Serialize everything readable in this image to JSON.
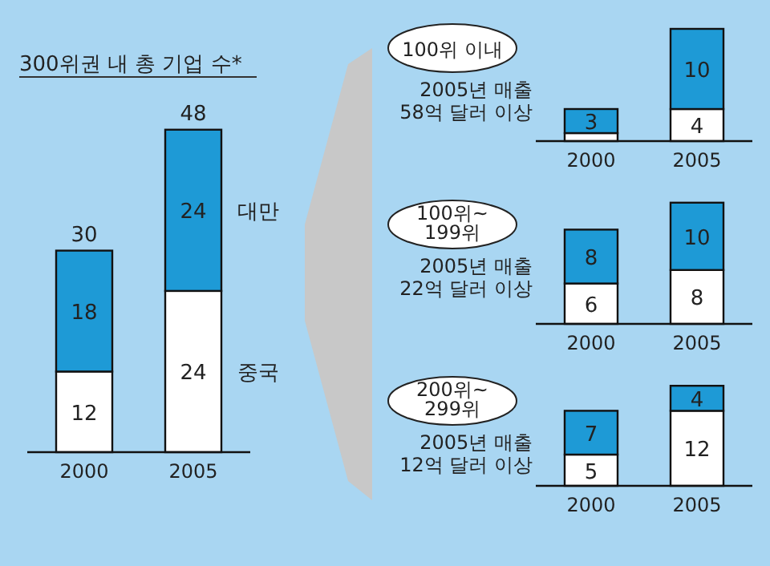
{
  "chart_data": [
    {
      "type": "bar",
      "title": "300위권 내 총 기업 수*",
      "categories": [
        "2000",
        "2005"
      ],
      "stacked": true,
      "totals": [
        "30",
        "48"
      ],
      "series": [
        {
          "name": "중국",
          "color": "#ffffff",
          "values": [
            12,
            24
          ],
          "value_labels": [
            "12",
            "24"
          ]
        },
        {
          "name": "대만",
          "color": "#1e9ad6",
          "values": [
            18,
            24
          ],
          "value_labels": [
            "18",
            "24"
          ]
        }
      ]
    },
    {
      "type": "bar",
      "title": "100위 이내",
      "subtitle": "2005년 매출\n58억 달러 이상",
      "categories": [
        "2000",
        "2005"
      ],
      "stacked": true,
      "series": [
        {
          "color": "#ffffff",
          "values": [
            1,
            4
          ],
          "value_labels": [
            null,
            "4"
          ]
        },
        {
          "color": "#1e9ad6",
          "values": [
            3,
            10
          ],
          "value_labels": [
            "3",
            "10"
          ]
        }
      ]
    },
    {
      "type": "bar",
      "title": "100위~\n199위",
      "subtitle": "2005년 매출\n22억 달러 이상",
      "categories": [
        "2000",
        "2005"
      ],
      "stacked": true,
      "series": [
        {
          "color": "#ffffff",
          "values": [
            6,
            8
          ],
          "value_labels": [
            "6",
            "8"
          ]
        },
        {
          "color": "#1e9ad6",
          "values": [
            8,
            10
          ],
          "value_labels": [
            "8",
            "10"
          ]
        }
      ]
    },
    {
      "type": "bar",
      "title": "200위~\n299위",
      "subtitle": "2005년 매출\n12억 달러 이상",
      "categories": [
        "2000",
        "2005"
      ],
      "stacked": true,
      "series": [
        {
          "color": "#ffffff",
          "values": [
            5,
            12
          ],
          "value_labels": [
            "5",
            "12"
          ]
        },
        {
          "color": "#1e9ad6",
          "values": [
            7,
            4
          ],
          "value_labels": [
            "7",
            "4"
          ]
        }
      ]
    }
  ]
}
